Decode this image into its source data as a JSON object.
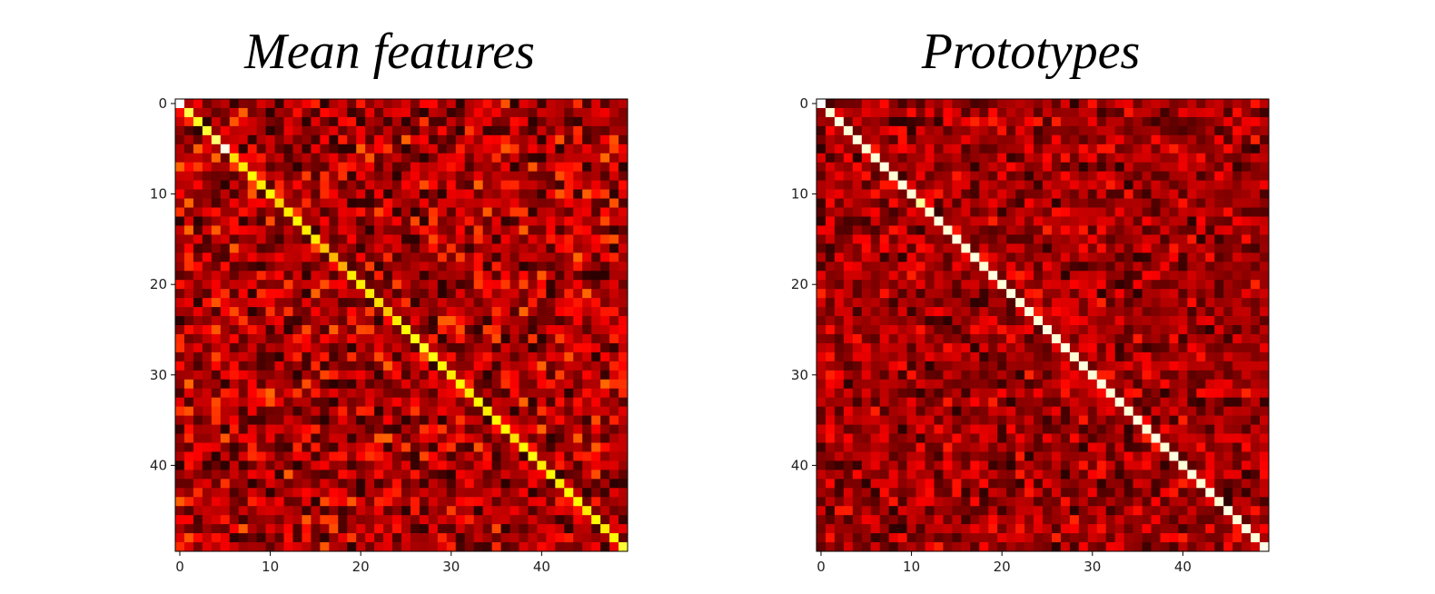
{
  "chart_data": [
    {
      "type": "heatmap",
      "title": "Mean features",
      "xlabel": "",
      "ylabel": "",
      "rows": 50,
      "cols": 50,
      "xlim": [
        -0.5,
        49.5
      ],
      "ylim": [
        49.5,
        -0.5
      ],
      "x_ticks": [
        0,
        10,
        20,
        30,
        40
      ],
      "y_ticks": [
        0,
        10,
        20,
        30,
        40
      ],
      "colormap": "hot",
      "grid": false,
      "diagonal": [
        1.0,
        0.82,
        0.78,
        0.8,
        0.86,
        0.98,
        0.7,
        0.72,
        0.74,
        0.72,
        0.74,
        0.68,
        0.72,
        0.74,
        0.72,
        0.72,
        0.66,
        0.64,
        0.62,
        0.72,
        0.72,
        0.72,
        0.7,
        0.66,
        0.72,
        0.74,
        0.76,
        0.78,
        0.76,
        0.74,
        0.72,
        0.74,
        0.72,
        0.74,
        0.72,
        0.74,
        0.74,
        0.7,
        0.74,
        0.76,
        0.72,
        0.74,
        0.72,
        0.74,
        0.74,
        0.72,
        0.74,
        0.72,
        0.74,
        0.8
      ],
      "off_diagonal_range": [
        0.05,
        0.52
      ],
      "off_diagonal_typical": 0.24,
      "seed": 11
    },
    {
      "type": "heatmap",
      "title": "Prototypes",
      "xlabel": "",
      "ylabel": "",
      "rows": 50,
      "cols": 50,
      "xlim": [
        -0.5,
        49.5
      ],
      "ylim": [
        49.5,
        -0.5
      ],
      "x_ticks": [
        0,
        10,
        20,
        30,
        40
      ],
      "y_ticks": [
        0,
        10,
        20,
        30,
        40
      ],
      "colormap": "hot",
      "grid": false,
      "diagonal": [
        1.0,
        0.96,
        0.97,
        0.96,
        0.97,
        0.96,
        0.96,
        0.97,
        0.96,
        0.97,
        0.96,
        0.9,
        0.96,
        0.97,
        0.96,
        0.97,
        0.96,
        0.97,
        0.96,
        0.97,
        0.96,
        0.97,
        0.96,
        0.97,
        0.96,
        0.97,
        0.96,
        0.97,
        0.96,
        0.97,
        0.96,
        0.97,
        0.96,
        0.97,
        0.96,
        0.97,
        0.96,
        0.97,
        0.96,
        0.97,
        0.96,
        0.97,
        0.96,
        0.97,
        0.96,
        0.97,
        0.96,
        0.97,
        0.96,
        0.98
      ],
      "off_diagonal_range": [
        0.05,
        0.42
      ],
      "off_diagonal_typical": 0.22,
      "seed": 29
    }
  ]
}
